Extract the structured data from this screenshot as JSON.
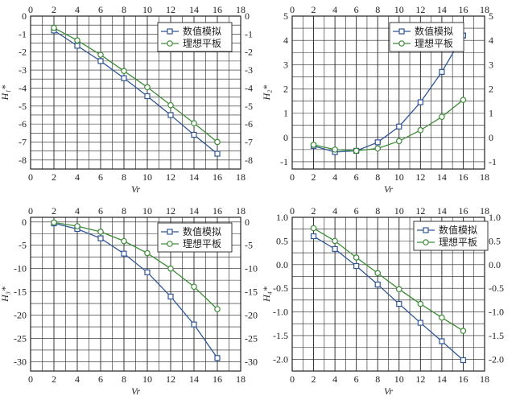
{
  "figure": {
    "background": "#ffffff"
  },
  "colors": {
    "numeric": "#2f5597",
    "ideal": "#3d8b37",
    "grid": "#222222"
  },
  "legend_names": {
    "numeric": "数值模拟",
    "ideal": "理想平板"
  },
  "chart_data": [
    {
      "type": "line",
      "panel": "top-left",
      "ylabel": "H₁*",
      "xlabel": "Vr",
      "xlim": [
        0,
        18
      ],
      "xticks": [
        0,
        2,
        4,
        6,
        8,
        10,
        12,
        14,
        16,
        18
      ],
      "ylim": [
        -8.5,
        0
      ],
      "yticks": [
        0,
        -1,
        -2,
        -3,
        -4,
        -5,
        -6,
        -7,
        -8
      ],
      "grid": true,
      "legend_position": "top-right",
      "x": [
        2,
        4,
        6,
        8,
        10,
        12,
        14,
        16
      ],
      "series": [
        {
          "key": "numeric",
          "name": "数值模拟",
          "marker": "square",
          "values": [
            -0.8,
            -1.65,
            -2.5,
            -3.45,
            -4.45,
            -5.5,
            -6.6,
            -7.65
          ]
        },
        {
          "key": "ideal",
          "name": "理想平板",
          "marker": "circle",
          "values": [
            -0.65,
            -1.35,
            -2.15,
            -3.05,
            -3.95,
            -4.95,
            -5.95,
            -7.0
          ]
        }
      ]
    },
    {
      "type": "line",
      "panel": "top-right",
      "ylabel": "H₂*",
      "xlabel": "Vr",
      "xlim": [
        0,
        18
      ],
      "xticks": [
        0,
        2,
        4,
        6,
        8,
        10,
        12,
        14,
        16,
        18
      ],
      "ylim": [
        -1.3,
        5
      ],
      "yticks": [
        5,
        4,
        3,
        2,
        1,
        0,
        -1
      ],
      "grid": true,
      "legend_position": "top-left",
      "x": [
        2,
        4,
        6,
        8,
        10,
        12,
        14,
        16
      ],
      "series": [
        {
          "key": "numeric",
          "name": "数值模拟",
          "marker": "square",
          "values": [
            -0.35,
            -0.6,
            -0.55,
            -0.2,
            0.45,
            1.45,
            2.7,
            4.2
          ]
        },
        {
          "key": "ideal",
          "name": "理想平板",
          "marker": "circle",
          "values": [
            -0.3,
            -0.5,
            -0.55,
            -0.45,
            -0.15,
            0.3,
            0.85,
            1.55
          ]
        }
      ]
    },
    {
      "type": "line",
      "panel": "bottom-left",
      "ylabel": "H₃*",
      "xlabel": "Vr",
      "xlim": [
        0,
        18
      ],
      "xticks": [
        0,
        2,
        4,
        6,
        8,
        10,
        12,
        14,
        16,
        18
      ],
      "ylim": [
        -32,
        1
      ],
      "yticks": [
        0,
        -5,
        -10,
        -15,
        -20,
        -25,
        -30
      ],
      "grid": true,
      "legend_position": "top-right",
      "x": [
        2,
        4,
        6,
        8,
        10,
        12,
        14,
        16
      ],
      "series": [
        {
          "key": "numeric",
          "name": "数值模拟",
          "marker": "square",
          "values": [
            -0.3,
            -1.5,
            -3.5,
            -6.8,
            -10.8,
            -16.0,
            -22.0,
            -29.2
          ]
        },
        {
          "key": "ideal",
          "name": "理想平板",
          "marker": "circle",
          "values": [
            -0.1,
            -0.9,
            -2.1,
            -4.1,
            -6.7,
            -10.0,
            -13.9,
            -18.7
          ]
        }
      ]
    },
    {
      "type": "line",
      "panel": "bottom-right",
      "ylabel": "H₄*",
      "xlabel": "Vr",
      "xlim": [
        0,
        18
      ],
      "xticks": [
        0,
        2,
        4,
        6,
        8,
        10,
        12,
        14,
        16,
        18
      ],
      "ylim": [
        -2.25,
        1.0
      ],
      "yticks": [
        1.0,
        0.5,
        0.0,
        -0.5,
        -1.0,
        -1.5,
        -2.0
      ],
      "ytick_labels": [
        "1.0",
        "0.5",
        "0.0",
        "-0.5",
        "-1.0",
        "-1.5",
        "-2.0"
      ],
      "grid": true,
      "legend_position": "top-right",
      "x": [
        2,
        4,
        6,
        8,
        10,
        12,
        14,
        16
      ],
      "series": [
        {
          "key": "numeric",
          "name": "数值模拟",
          "marker": "square",
          "values": [
            0.6,
            0.33,
            -0.03,
            -0.42,
            -0.83,
            -1.23,
            -1.62,
            -2.02
          ]
        },
        {
          "key": "ideal",
          "name": "理想平板",
          "marker": "circle",
          "values": [
            0.77,
            0.5,
            0.15,
            -0.18,
            -0.52,
            -0.83,
            -1.12,
            -1.4
          ]
        }
      ]
    }
  ]
}
